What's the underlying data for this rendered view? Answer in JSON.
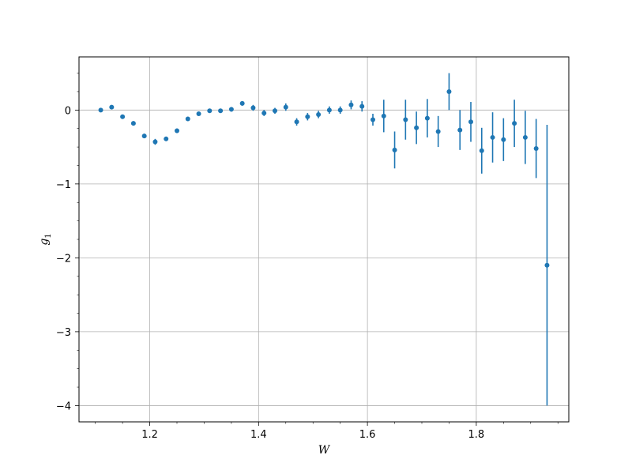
{
  "chart_data": {
    "type": "scatter",
    "xlabel": "W",
    "ylabel": "g",
    "ylabel_subscript": "1",
    "xlim": [
      1.07,
      1.97
    ],
    "ylim": [
      -4.22,
      0.72
    ],
    "grid": true,
    "x_major_ticks": [
      1.2,
      1.4,
      1.6,
      1.8
    ],
    "x_tick_labels": [
      "1.2",
      "1.4",
      "1.6",
      "1.8"
    ],
    "x_minor_ticks": [
      1.1,
      1.15,
      1.25,
      1.3,
      1.35,
      1.45,
      1.5,
      1.55,
      1.65,
      1.7,
      1.75,
      1.85,
      1.9,
      1.95
    ],
    "y_major_ticks": [
      0,
      -1,
      -2,
      -3,
      -4
    ],
    "y_tick_labels": [
      "0",
      "−1",
      "−2",
      "−3",
      "−4"
    ],
    "y_minor_ticks": [
      0.5,
      0.25,
      -0.25,
      -0.5,
      -0.75,
      -1.25,
      -1.5,
      -1.75,
      -2.25,
      -2.5,
      -2.75,
      -3.25,
      -3.5,
      -3.75,
      -4.25
    ],
    "color": "#1f77b4",
    "points": [
      {
        "x": 1.11,
        "y": 0.0,
        "err": 0.02
      },
      {
        "x": 1.13,
        "y": 0.04,
        "err": 0.02
      },
      {
        "x": 1.15,
        "y": -0.09,
        "err": 0.02
      },
      {
        "x": 1.17,
        "y": -0.18,
        "err": 0.03
      },
      {
        "x": 1.19,
        "y": -0.35,
        "err": 0.03
      },
      {
        "x": 1.21,
        "y": -0.43,
        "err": 0.04
      },
      {
        "x": 1.23,
        "y": -0.39,
        "err": 0.03
      },
      {
        "x": 1.25,
        "y": -0.28,
        "err": 0.03
      },
      {
        "x": 1.27,
        "y": -0.12,
        "err": 0.02
      },
      {
        "x": 1.29,
        "y": -0.05,
        "err": 0.02
      },
      {
        "x": 1.31,
        "y": -0.01,
        "err": 0.02
      },
      {
        "x": 1.33,
        "y": -0.01,
        "err": 0.02
      },
      {
        "x": 1.35,
        "y": 0.01,
        "err": 0.03
      },
      {
        "x": 1.37,
        "y": 0.09,
        "err": 0.03
      },
      {
        "x": 1.39,
        "y": 0.03,
        "err": 0.04
      },
      {
        "x": 1.41,
        "y": -0.04,
        "err": 0.04
      },
      {
        "x": 1.43,
        "y": -0.01,
        "err": 0.04
      },
      {
        "x": 1.45,
        "y": 0.04,
        "err": 0.05
      },
      {
        "x": 1.47,
        "y": -0.16,
        "err": 0.05
      },
      {
        "x": 1.49,
        "y": -0.09,
        "err": 0.05
      },
      {
        "x": 1.51,
        "y": -0.06,
        "err": 0.05
      },
      {
        "x": 1.53,
        "y": 0.0,
        "err": 0.05
      },
      {
        "x": 1.55,
        "y": 0.0,
        "err": 0.05
      },
      {
        "x": 1.57,
        "y": 0.07,
        "err": 0.06
      },
      {
        "x": 1.59,
        "y": 0.05,
        "err": 0.07
      },
      {
        "x": 1.61,
        "y": -0.13,
        "err": 0.08
      },
      {
        "x": 1.63,
        "y": -0.08,
        "err": 0.22
      },
      {
        "x": 1.65,
        "y": -0.54,
        "err": 0.25
      },
      {
        "x": 1.67,
        "y": -0.13,
        "err": 0.27
      },
      {
        "x": 1.69,
        "y": -0.24,
        "err": 0.22
      },
      {
        "x": 1.71,
        "y": -0.11,
        "err": 0.26
      },
      {
        "x": 1.73,
        "y": -0.29,
        "err": 0.21
      },
      {
        "x": 1.75,
        "y": 0.25,
        "err": 0.25
      },
      {
        "x": 1.77,
        "y": -0.27,
        "err": 0.27
      },
      {
        "x": 1.79,
        "y": -0.16,
        "err": 0.27
      },
      {
        "x": 1.81,
        "y": -0.55,
        "err": 0.31
      },
      {
        "x": 1.83,
        "y": -0.37,
        "err": 0.34
      },
      {
        "x": 1.85,
        "y": -0.4,
        "err": 0.29
      },
      {
        "x": 1.87,
        "y": -0.18,
        "err": 0.32
      },
      {
        "x": 1.89,
        "y": -0.37,
        "err": 0.36
      },
      {
        "x": 1.91,
        "y": -0.52,
        "err": 0.4
      },
      {
        "x": 1.93,
        "y": -2.1,
        "err": 1.9
      }
    ]
  }
}
